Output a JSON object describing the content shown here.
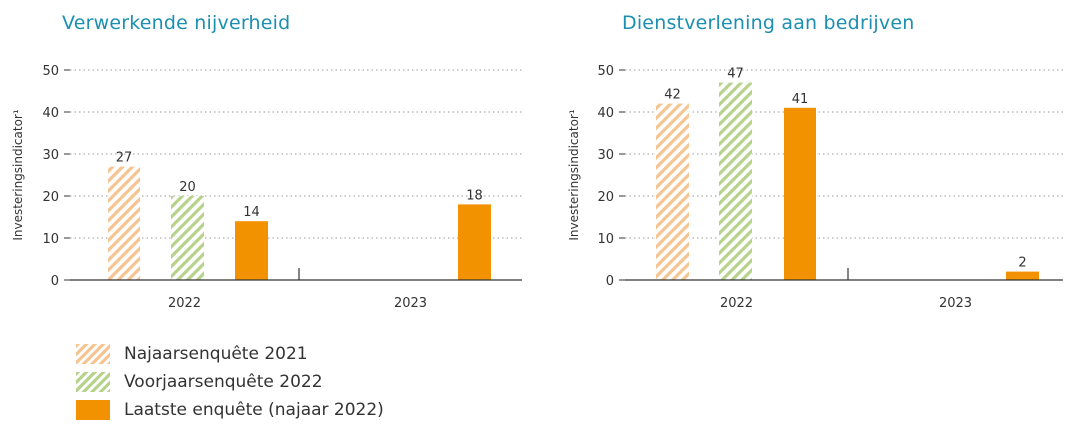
{
  "colors": {
    "title": "#1b8fb0",
    "najaar2021": "#f6c491",
    "voorjaar2022": "#b7d28b",
    "laatste": "#f39200",
    "grid": "#9a9a9a",
    "axis": "#333333"
  },
  "legend": [
    {
      "label": "Najaarsenquête 2021",
      "style": "hatched",
      "color": "#f6c491"
    },
    {
      "label": "Voorjaarsenquête 2022",
      "style": "hatched",
      "color": "#b7d28b"
    },
    {
      "label": "Laatste enquête (najaar 2022)",
      "style": "solid",
      "color": "#f39200"
    }
  ],
  "chart_data": [
    {
      "type": "bar",
      "title": "Verwerkende nijverheid",
      "ylabel": "Investeringsindicator¹",
      "xlabel": "",
      "ylim": [
        0,
        50
      ],
      "yticks": [
        0,
        10,
        20,
        30,
        40,
        50
      ],
      "categories": [
        "2022",
        "2023"
      ],
      "grid": true,
      "series": [
        {
          "name": "Najaarsenquête 2021",
          "values": [
            27,
            null
          ],
          "labels": [
            "27",
            ""
          ]
        },
        {
          "name": "Voorjaarsenquête 2022",
          "values": [
            20,
            null
          ],
          "labels": [
            "20",
            ""
          ]
        },
        {
          "name": "Laatste enquête (najaar 2022)",
          "values": [
            14,
            18
          ],
          "labels": [
            "14",
            "18"
          ]
        }
      ]
    },
    {
      "type": "bar",
      "title": "Dienstverlening aan bedrijven",
      "ylabel": "Investeringsindicator¹",
      "xlabel": "",
      "ylim": [
        0,
        50
      ],
      "yticks": [
        0,
        10,
        20,
        30,
        40,
        50
      ],
      "categories": [
        "2022",
        "2023"
      ],
      "grid": true,
      "series": [
        {
          "name": "Najaarsenquête 2021",
          "values": [
            42,
            null
          ],
          "labels": [
            "42",
            ""
          ]
        },
        {
          "name": "Voorjaarsenquête 2022",
          "values": [
            47,
            null
          ],
          "labels": [
            "47",
            ""
          ]
        },
        {
          "name": "Laatste enquête (najaar 2022)",
          "values": [
            41,
            2
          ],
          "labels": [
            "41",
            "2"
          ]
        }
      ]
    }
  ]
}
